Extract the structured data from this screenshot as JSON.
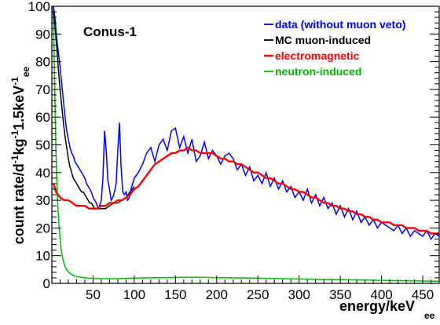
{
  "chart_data": {
    "type": "line",
    "annotation": "Conus-1",
    "xlabel": "energy/keV",
    "xlabel_sub": "ee",
    "ylabel": "count rate/d",
    "ylabel_parts": [
      {
        "text": "count rate/d",
        "sup": false
      },
      {
        "text": "-1",
        "sup": true
      },
      {
        "text": "kg",
        "sup": false
      },
      {
        "text": "-1",
        "sup": true
      },
      {
        "text": "1.5keV",
        "sup": false
      },
      {
        "text": "-1",
        "sup": true
      },
      {
        "text": "ee",
        "sub": true
      }
    ],
    "xlim": [
      0,
      470
    ],
    "ylim": [
      0,
      100
    ],
    "x_ticks": [
      50,
      100,
      150,
      200,
      250,
      300,
      350,
      400,
      450
    ],
    "y_ticks": [
      0,
      10,
      20,
      30,
      40,
      50,
      60,
      70,
      80,
      90,
      100
    ],
    "y_tick_labels": [
      "0",
      "10",
      "20",
      "30",
      "40",
      "50",
      "60",
      "70",
      "80",
      "90",
      "100"
    ],
    "x_tick_labels": [
      "50",
      "100",
      "150",
      "200",
      "250",
      "300",
      "350",
      "400",
      "450"
    ],
    "grid": false,
    "legend_position": "top-right",
    "series": [
      {
        "name": "data (without muon veto)",
        "color": "#0000ff",
        "x": [
          2,
          4,
          6,
          8,
          10,
          12,
          14,
          16,
          18,
          20,
          22,
          24,
          26,
          28,
          30,
          32,
          34,
          36,
          38,
          40,
          42,
          44,
          46,
          48,
          50,
          52,
          54,
          56,
          58,
          60,
          62,
          64,
          66,
          68,
          70,
          72,
          74,
          76,
          78,
          80,
          82,
          84,
          86,
          88,
          90,
          92,
          94,
          96,
          98,
          100,
          105,
          110,
          115,
          120,
          125,
          130,
          135,
          140,
          145,
          150,
          155,
          160,
          165,
          170,
          175,
          180,
          185,
          190,
          195,
          200,
          205,
          210,
          215,
          220,
          225,
          230,
          235,
          240,
          245,
          250,
          255,
          260,
          265,
          270,
          275,
          280,
          285,
          290,
          295,
          300,
          305,
          310,
          315,
          320,
          325,
          330,
          335,
          340,
          345,
          350,
          355,
          360,
          365,
          370,
          375,
          380,
          385,
          390,
          395,
          400,
          405,
          410,
          415,
          420,
          425,
          430,
          435,
          440,
          445,
          450,
          455,
          460,
          465,
          470
        ],
        "values": [
          100,
          95,
          88,
          83,
          78,
          72,
          66,
          60,
          55,
          52,
          49,
          47,
          46,
          44,
          43,
          42,
          41,
          40,
          39,
          38,
          36,
          35,
          34,
          33,
          31,
          30,
          29,
          27,
          28,
          30,
          38,
          55,
          48,
          37,
          34,
          30,
          31,
          33,
          36,
          48,
          58,
          42,
          33,
          32,
          33,
          30,
          31,
          34,
          36,
          38,
          40,
          43,
          47,
          49,
          44,
          50,
          52,
          48,
          55,
          56,
          49,
          53,
          47,
          52,
          44,
          46,
          51,
          45,
          48,
          46,
          43,
          46,
          47,
          45,
          41,
          43,
          39,
          42,
          37,
          39,
          36,
          40,
          35,
          38,
          34,
          37,
          33,
          35,
          31,
          33,
          30,
          34,
          29,
          32,
          28,
          31,
          27,
          29,
          25,
          28,
          24,
          27,
          23,
          26,
          22,
          24,
          21,
          23,
          20,
          22,
          21,
          20,
          19,
          21,
          18,
          20,
          17,
          19,
          18,
          17,
          19,
          16,
          18,
          17
        ]
      },
      {
        "name": "MC muon-induced",
        "color": "#000000",
        "x": [
          2,
          4,
          6,
          8,
          10,
          12,
          14,
          16,
          18,
          20,
          22,
          24,
          26,
          28,
          30,
          32,
          34,
          36,
          38,
          40,
          42,
          44,
          46,
          48,
          50,
          52,
          54,
          56,
          58,
          60,
          65,
          70,
          75,
          80,
          85,
          90,
          95,
          100
        ],
        "values": [
          98,
          92,
          85,
          77,
          70,
          64,
          58,
          53,
          49,
          45,
          42,
          40,
          38,
          37,
          36,
          35,
          34,
          33,
          33,
          32,
          31,
          30,
          29,
          29,
          28,
          27,
          27,
          27,
          27,
          27,
          27,
          28,
          29,
          29,
          30,
          31,
          33,
          35
        ]
      },
      {
        "name": "electromagnetic",
        "color": "#ff0000",
        "x": [
          2,
          5,
          10,
          15,
          20,
          25,
          30,
          35,
          40,
          45,
          50,
          55,
          60,
          65,
          70,
          75,
          80,
          85,
          90,
          95,
          100,
          105,
          110,
          115,
          120,
          125,
          130,
          135,
          140,
          145,
          150,
          155,
          160,
          165,
          170,
          175,
          180,
          185,
          190,
          195,
          200,
          205,
          210,
          215,
          220,
          225,
          230,
          235,
          240,
          245,
          250,
          255,
          260,
          265,
          270,
          275,
          280,
          285,
          290,
          295,
          300,
          305,
          310,
          315,
          320,
          325,
          330,
          335,
          340,
          345,
          350,
          355,
          360,
          365,
          370,
          375,
          380,
          385,
          390,
          395,
          400,
          405,
          410,
          415,
          420,
          425,
          430,
          435,
          440,
          445,
          450,
          455,
          460,
          465,
          470
        ],
        "values": [
          36,
          33,
          31,
          30,
          30,
          29,
          28,
          28,
          28,
          27,
          27,
          27,
          28,
          28,
          29,
          29,
          30,
          30,
          31,
          32,
          34,
          35,
          37,
          39,
          41,
          43,
          44,
          45,
          46,
          47,
          47,
          48,
          48,
          49,
          48,
          48,
          47,
          47,
          47,
          47,
          46,
          45,
          45,
          44,
          44,
          43,
          43,
          42,
          41,
          40,
          40,
          39,
          38,
          38,
          37,
          36,
          36,
          35,
          34,
          34,
          33,
          33,
          32,
          31,
          31,
          30,
          29,
          29,
          28,
          28,
          27,
          27,
          26,
          26,
          25,
          25,
          24,
          24,
          23,
          23,
          22,
          22,
          22,
          21,
          21,
          21,
          20,
          20,
          20,
          19,
          19,
          19,
          18,
          18,
          18
        ]
      },
      {
        "name": "neutron-induced",
        "color": "#00bb00",
        "x": [
          1,
          2,
          3,
          4,
          5,
          6,
          7,
          8,
          9,
          10,
          11,
          12,
          13,
          14,
          15,
          16,
          18,
          20,
          22,
          24,
          26,
          28,
          30,
          35,
          40,
          45,
          50,
          60,
          70,
          80,
          90,
          100,
          120,
          140,
          160,
          180,
          200,
          220,
          240,
          260,
          280,
          300,
          320,
          340,
          360,
          380,
          400,
          420,
          440,
          460,
          470
        ],
        "values": [
          100,
          96,
          80,
          62,
          48,
          38,
          30,
          24,
          20,
          16,
          13,
          11,
          9.5,
          8,
          7,
          6,
          5,
          4.2,
          3.6,
          3.2,
          2.9,
          2.7,
          2.5,
          2.2,
          2.0,
          1.9,
          1.8,
          1.7,
          1.7,
          1.7,
          1.8,
          1.9,
          2.0,
          2.1,
          2.2,
          2.2,
          2.1,
          2.0,
          1.9,
          1.8,
          1.7,
          1.6,
          1.5,
          1.4,
          1.3,
          1.2,
          1.1,
          1.0,
          0.9,
          0.8,
          0.8
        ]
      }
    ]
  }
}
